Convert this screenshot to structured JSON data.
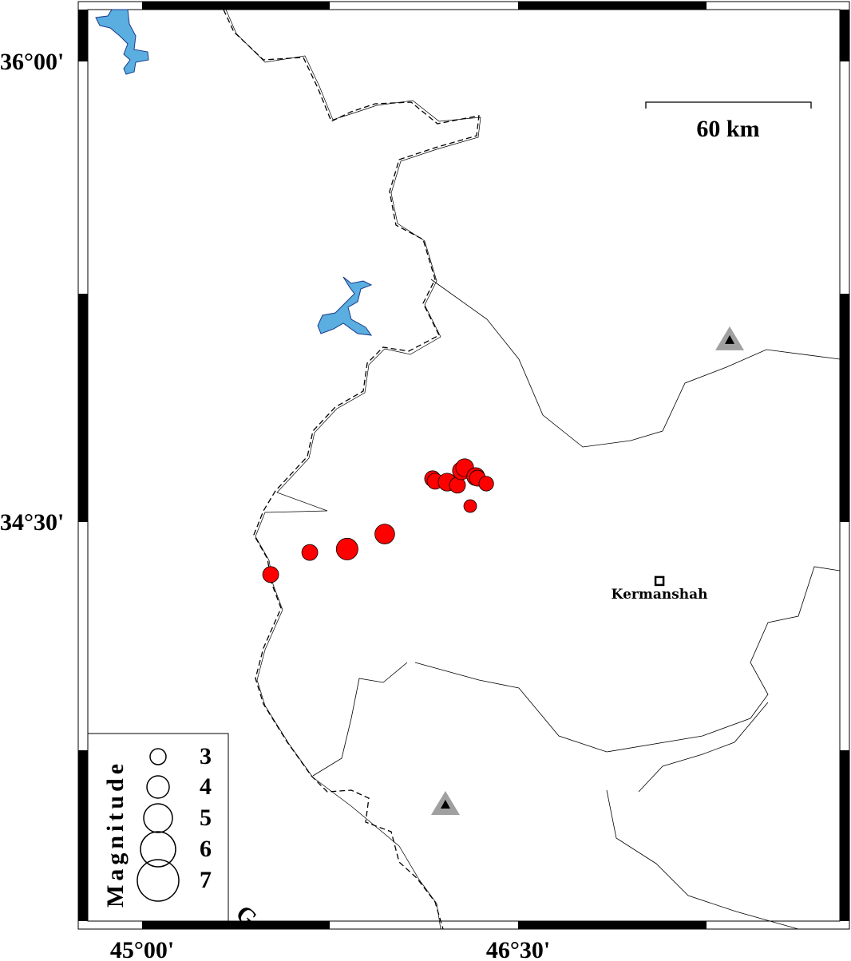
{
  "map": {
    "projection_ref": {
      "lon_ticks": [
        "45°00'",
        "46°30'"
      ],
      "lat_ticks": [
        "36°00'",
        "34°30'"
      ]
    },
    "scale_bar": {
      "label": "60 km"
    },
    "colors": {
      "earthquake": "#ff0000",
      "lake": "#5aaee0",
      "station": "#000000",
      "station_halo": "#a0a0a0"
    },
    "cities": [
      {
        "name": "Kermanshah",
        "lon": 47.064,
        "lat": 34.308,
        "icon": "square-marker"
      }
    ],
    "stations": [
      {
        "lon": 47.344,
        "lat": 35.093,
        "icon": "triangle-icon"
      },
      {
        "lon": 46.21,
        "lat": 33.58,
        "icon": "triangle-icon"
      }
    ],
    "earthquakes": [
      {
        "lon": 45.513,
        "lat": 34.329,
        "mag": 3.0
      },
      {
        "lon": 45.669,
        "lat": 34.401,
        "mag": 3.0
      },
      {
        "lon": 45.818,
        "lat": 34.412,
        "mag": 3.9
      },
      {
        "lon": 45.968,
        "lat": 34.461,
        "mag": 3.6
      },
      {
        "lon": 46.159,
        "lat": 34.641,
        "mag": 3.0
      },
      {
        "lon": 46.169,
        "lat": 34.633,
        "mag": 3.0
      },
      {
        "lon": 46.217,
        "lat": 34.63,
        "mag": 3.3
      },
      {
        "lon": 46.258,
        "lat": 34.62,
        "mag": 3.0
      },
      {
        "lon": 46.274,
        "lat": 34.667,
        "mag": 3.3
      },
      {
        "lon": 46.287,
        "lat": 34.677,
        "mag": 3.3
      },
      {
        "lon": 46.331,
        "lat": 34.648,
        "mag": 3.3
      },
      {
        "lon": 46.338,
        "lat": 34.643,
        "mag": 3.0
      },
      {
        "lon": 46.373,
        "lat": 34.625,
        "mag": 2.8
      },
      {
        "lon": 46.309,
        "lat": 34.552,
        "mag": 2.5
      }
    ],
    "clipped_label": "G"
  },
  "legend": {
    "title": "Magnitude",
    "entries": [
      {
        "mag": 3,
        "label": "3"
      },
      {
        "mag": 4,
        "label": "4"
      },
      {
        "mag": 5,
        "label": "5"
      },
      {
        "mag": 6,
        "label": "6"
      },
      {
        "mag": 7,
        "label": "7"
      }
    ]
  }
}
